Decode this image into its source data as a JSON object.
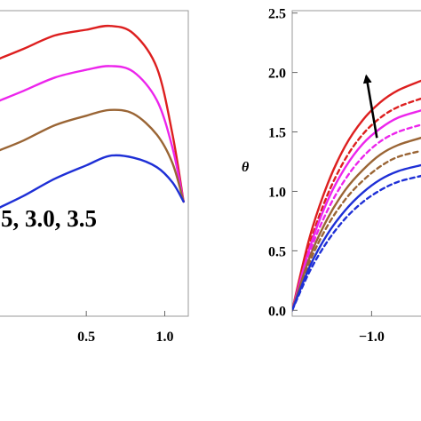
{
  "chart_data": [
    {
      "type": "line",
      "xlabel": "",
      "ylabel": "",
      "xlim": [
        -0.05,
        1.15
      ],
      "ylim": [
        0,
        1.6
      ],
      "xticks": [
        0.5,
        1.0
      ],
      "xtick_labels": [
        "0.5",
        "1.0"
      ],
      "annotation": "5, 3.0, 3.5",
      "grid": false,
      "series": [
        {
          "color": "#dd1f1f",
          "style": "solid",
          "x": [
            -0.05,
            0.1,
            0.3,
            0.5,
            0.65,
            0.8,
            0.95,
            1.05,
            1.12
          ],
          "y": [
            1.35,
            1.4,
            1.47,
            1.5,
            1.52,
            1.48,
            1.3,
            0.95,
            0.6
          ]
        },
        {
          "color": "#ec25ec",
          "style": "solid",
          "x": [
            -0.05,
            0.1,
            0.3,
            0.5,
            0.65,
            0.8,
            0.95,
            1.05,
            1.12
          ],
          "y": [
            1.13,
            1.18,
            1.25,
            1.29,
            1.31,
            1.28,
            1.13,
            0.88,
            0.6
          ]
        },
        {
          "color": "#9a6535",
          "style": "solid",
          "x": [
            -0.05,
            0.1,
            0.3,
            0.5,
            0.65,
            0.8,
            0.95,
            1.05,
            1.12
          ],
          "y": [
            0.87,
            0.92,
            1.0,
            1.05,
            1.08,
            1.06,
            0.95,
            0.8,
            0.6
          ]
        },
        {
          "color": "#1e2fd6",
          "style": "solid",
          "x": [
            -0.05,
            0.1,
            0.3,
            0.5,
            0.65,
            0.8,
            0.95,
            1.05,
            1.12
          ],
          "y": [
            0.57,
            0.63,
            0.72,
            0.79,
            0.84,
            0.83,
            0.78,
            0.7,
            0.6
          ]
        }
      ]
    },
    {
      "type": "line",
      "xlabel": "",
      "ylabel": "θ",
      "xlim": [
        -1.45,
        -0.72
      ],
      "ylim": [
        -0.05,
        2.52
      ],
      "yticks": [
        0.0,
        0.5,
        1.0,
        1.5,
        2.0,
        2.5
      ],
      "ytick_labels": [
        "0.0",
        "0.5",
        "1.0",
        "1.5",
        "2.0",
        "2.5"
      ],
      "xticks": [
        -1.0
      ],
      "xtick_labels": [
        "−1.0"
      ],
      "grid": false,
      "arrow": {
        "from": [
          -0.97,
          1.45
        ],
        "to": [
          -1.03,
          1.97
        ]
      },
      "series": [
        {
          "color": "#dd1f1f",
          "style": "solid",
          "x": [
            -1.45,
            -1.35,
            -1.25,
            -1.15,
            -1.05,
            -0.95,
            -0.85,
            -0.72
          ],
          "y": [
            0,
            0.62,
            1.06,
            1.38,
            1.6,
            1.75,
            1.85,
            1.93
          ]
        },
        {
          "color": "#dd1f1f",
          "style": "dashed",
          "x": [
            -1.45,
            -1.35,
            -1.25,
            -1.15,
            -1.05,
            -0.95,
            -0.85,
            -0.72
          ],
          "y": [
            0,
            0.56,
            0.97,
            1.27,
            1.48,
            1.62,
            1.71,
            1.78
          ]
        },
        {
          "color": "#ec25ec",
          "style": "solid",
          "x": [
            -1.45,
            -1.35,
            -1.25,
            -1.15,
            -1.05,
            -0.95,
            -0.85,
            -0.72
          ],
          "y": [
            0,
            0.53,
            0.92,
            1.2,
            1.4,
            1.53,
            1.62,
            1.68
          ]
        },
        {
          "color": "#ec25ec",
          "style": "dashed",
          "x": [
            -1.45,
            -1.35,
            -1.25,
            -1.15,
            -1.05,
            -0.95,
            -0.85,
            -0.72
          ],
          "y": [
            0,
            0.49,
            0.84,
            1.1,
            1.29,
            1.42,
            1.5,
            1.56
          ]
        },
        {
          "color": "#9a6535",
          "style": "solid",
          "x": [
            -1.45,
            -1.35,
            -1.25,
            -1.15,
            -1.05,
            -0.95,
            -0.85,
            -0.72
          ],
          "y": [
            0,
            0.45,
            0.77,
            1.01,
            1.18,
            1.31,
            1.39,
            1.45
          ]
        },
        {
          "color": "#9a6535",
          "style": "dashed",
          "x": [
            -1.45,
            -1.35,
            -1.25,
            -1.15,
            -1.05,
            -0.95,
            -0.85,
            -0.72
          ],
          "y": [
            0,
            0.41,
            0.71,
            0.93,
            1.09,
            1.21,
            1.29,
            1.34
          ]
        },
        {
          "color": "#1e2fd6",
          "style": "solid",
          "x": [
            -1.45,
            -1.35,
            -1.25,
            -1.15,
            -1.05,
            -0.95,
            -0.85,
            -0.72
          ],
          "y": [
            0,
            0.37,
            0.64,
            0.84,
            0.99,
            1.1,
            1.17,
            1.22
          ]
        },
        {
          "color": "#1e2fd6",
          "style": "dashed",
          "x": [
            -1.45,
            -1.35,
            -1.25,
            -1.15,
            -1.05,
            -0.95,
            -0.85,
            -0.72
          ],
          "y": [
            0,
            0.33,
            0.58,
            0.77,
            0.91,
            1.01,
            1.08,
            1.13
          ]
        }
      ]
    }
  ]
}
